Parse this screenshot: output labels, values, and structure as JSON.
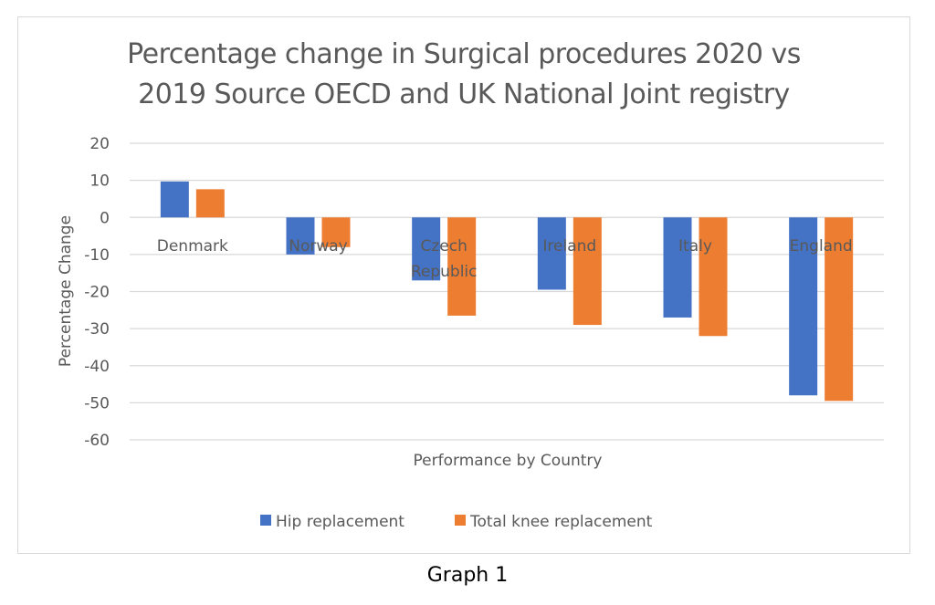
{
  "chart_data": {
    "type": "bar",
    "title_lines": [
      "Percentage change in Surgical procedures 2020 vs",
      "2019 Source OECD and UK National Joint registry"
    ],
    "categories": [
      "Denmark",
      "Norway",
      "Czech Republic",
      "Ireland",
      "Italy",
      "England"
    ],
    "category_label_lines": [
      [
        "Denmark"
      ],
      [
        "Norway"
      ],
      [
        "Czech",
        "Republic"
      ],
      [
        "Ireland"
      ],
      [
        "Italy"
      ],
      [
        "England"
      ]
    ],
    "series": [
      {
        "name": "Hip replacement",
        "color": "#4472c4",
        "values": [
          9.7,
          -10,
          -17,
          -19.5,
          -27,
          -48
        ]
      },
      {
        "name": "Total knee replacement",
        "color": "#ed7d31",
        "values": [
          7.6,
          -8,
          -26.5,
          -29,
          -32,
          -49.5
        ]
      }
    ],
    "xlabel": "Performance by Country",
    "ylabel": "Percentage Change",
    "ylim": [
      -60,
      20
    ],
    "yticks": [
      20,
      10,
      0,
      -10,
      -20,
      -30,
      -40,
      -50,
      -60
    ],
    "grid": true,
    "legend_position": "bottom"
  },
  "caption": "Graph 1"
}
